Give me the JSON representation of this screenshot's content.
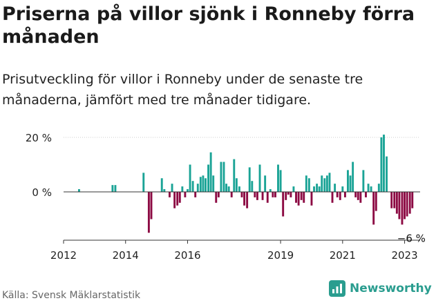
{
  "header": {
    "title": "Priserna på villor sjönk i Ronneby förra månaden",
    "subtitle": "Prisutveckling för villor i Ronneby under de senaste tre månaderna, jämfört med tre månader tidigare."
  },
  "footer": {
    "source": "Källa: Svensk Mäklarstatistik",
    "brand": "Newsworthy"
  },
  "colors": {
    "positive": "#1aa396",
    "negative": "#8c0a43",
    "axis": "#333333",
    "grid": "#cccccc"
  },
  "chart_data": {
    "type": "bar",
    "title": "",
    "xlabel": "",
    "ylabel": "",
    "ylim": [
      -17,
      23
    ],
    "y_ticks": [
      {
        "value": 0,
        "label": "0 %"
      },
      {
        "value": 20,
        "label": "20 %"
      }
    ],
    "x_ticks": [
      {
        "value": 2012,
        "label": "2012"
      },
      {
        "value": 2014,
        "label": "2014"
      },
      {
        "value": 2016,
        "label": "2016"
      },
      {
        "value": 2019,
        "label": "2019"
      },
      {
        "value": 2021,
        "label": "2021"
      },
      {
        "value": 2023,
        "label": "2023"
      }
    ],
    "xlim": [
      2012,
      2023.5
    ],
    "annotation": {
      "label": "−6 %"
    },
    "series": [
      {
        "values": [
          {
            "x": 2012.5,
            "y": 1
          },
          {
            "x": 2013.58,
            "y": 2.5
          },
          {
            "x": 2013.67,
            "y": 2.5
          },
          {
            "x": 2014.58,
            "y": 7
          },
          {
            "x": 2014.75,
            "y": -15
          },
          {
            "x": 2014.83,
            "y": -10
          },
          {
            "x": 2015.17,
            "y": 5
          },
          {
            "x": 2015.25,
            "y": 1
          },
          {
            "x": 2015.42,
            "y": -2
          },
          {
            "x": 2015.5,
            "y": 3
          },
          {
            "x": 2015.58,
            "y": -6
          },
          {
            "x": 2015.67,
            "y": -5
          },
          {
            "x": 2015.75,
            "y": -4
          },
          {
            "x": 2015.83,
            "y": 2
          },
          {
            "x": 2015.92,
            "y": -2
          },
          {
            "x": 2016.0,
            "y": 1
          },
          {
            "x": 2016.08,
            "y": 10
          },
          {
            "x": 2016.17,
            "y": 4
          },
          {
            "x": 2016.25,
            "y": -2
          },
          {
            "x": 2016.33,
            "y": 3
          },
          {
            "x": 2016.42,
            "y": 5.5
          },
          {
            "x": 2016.5,
            "y": 6
          },
          {
            "x": 2016.58,
            "y": 5
          },
          {
            "x": 2016.67,
            "y": 10
          },
          {
            "x": 2016.75,
            "y": 14.5
          },
          {
            "x": 2016.83,
            "y": 6
          },
          {
            "x": 2016.92,
            "y": -4
          },
          {
            "x": 2017.0,
            "y": -2
          },
          {
            "x": 2017.08,
            "y": 11
          },
          {
            "x": 2017.17,
            "y": 11
          },
          {
            "x": 2017.25,
            "y": 3
          },
          {
            "x": 2017.33,
            "y": 2
          },
          {
            "x": 2017.42,
            "y": -2
          },
          {
            "x": 2017.5,
            "y": 12
          },
          {
            "x": 2017.58,
            "y": 5
          },
          {
            "x": 2017.67,
            "y": 2
          },
          {
            "x": 2017.75,
            "y": -2
          },
          {
            "x": 2017.83,
            "y": -5
          },
          {
            "x": 2017.92,
            "y": -6
          },
          {
            "x": 2018.0,
            "y": 9
          },
          {
            "x": 2018.08,
            "y": 4
          },
          {
            "x": 2018.17,
            "y": -2
          },
          {
            "x": 2018.25,
            "y": -3
          },
          {
            "x": 2018.33,
            "y": 10
          },
          {
            "x": 2018.42,
            "y": -3
          },
          {
            "x": 2018.5,
            "y": 6
          },
          {
            "x": 2018.58,
            "y": -4
          },
          {
            "x": 2018.67,
            "y": 1
          },
          {
            "x": 2018.75,
            "y": -2
          },
          {
            "x": 2018.83,
            "y": -2
          },
          {
            "x": 2018.92,
            "y": 10
          },
          {
            "x": 2019.0,
            "y": 8
          },
          {
            "x": 2019.08,
            "y": -9
          },
          {
            "x": 2019.17,
            "y": -3
          },
          {
            "x": 2019.25,
            "y": -1
          },
          {
            "x": 2019.33,
            "y": -2
          },
          {
            "x": 2019.42,
            "y": 2
          },
          {
            "x": 2019.5,
            "y": -4
          },
          {
            "x": 2019.58,
            "y": -5
          },
          {
            "x": 2019.67,
            "y": -3
          },
          {
            "x": 2019.75,
            "y": -4
          },
          {
            "x": 2019.83,
            "y": 6
          },
          {
            "x": 2019.92,
            "y": 5
          },
          {
            "x": 2020.0,
            "y": -5
          },
          {
            "x": 2020.08,
            "y": 2
          },
          {
            "x": 2020.17,
            "y": 3
          },
          {
            "x": 2020.25,
            "y": 2
          },
          {
            "x": 2020.33,
            "y": 6
          },
          {
            "x": 2020.42,
            "y": 5
          },
          {
            "x": 2020.5,
            "y": 6
          },
          {
            "x": 2020.58,
            "y": 7
          },
          {
            "x": 2020.67,
            "y": -4
          },
          {
            "x": 2020.75,
            "y": 3
          },
          {
            "x": 2020.83,
            "y": -2
          },
          {
            "x": 2020.92,
            "y": -3
          },
          {
            "x": 2021.0,
            "y": 2
          },
          {
            "x": 2021.08,
            "y": -2
          },
          {
            "x": 2021.17,
            "y": 8
          },
          {
            "x": 2021.25,
            "y": 6
          },
          {
            "x": 2021.33,
            "y": 11
          },
          {
            "x": 2021.42,
            "y": -2
          },
          {
            "x": 2021.5,
            "y": -3
          },
          {
            "x": 2021.58,
            "y": -4
          },
          {
            "x": 2021.67,
            "y": 8
          },
          {
            "x": 2021.75,
            "y": -2
          },
          {
            "x": 2021.83,
            "y": 3
          },
          {
            "x": 2021.92,
            "y": 2
          },
          {
            "x": 2022.0,
            "y": -12
          },
          {
            "x": 2022.08,
            "y": -7
          },
          {
            "x": 2022.17,
            "y": 3
          },
          {
            "x": 2022.25,
            "y": 20
          },
          {
            "x": 2022.33,
            "y": 21
          },
          {
            "x": 2022.42,
            "y": 13
          },
          {
            "x": 2022.58,
            "y": -6
          },
          {
            "x": 2022.67,
            "y": -6
          },
          {
            "x": 2022.75,
            "y": -8
          },
          {
            "x": 2022.83,
            "y": -10
          },
          {
            "x": 2022.92,
            "y": -12
          },
          {
            "x": 2023.0,
            "y": -10
          },
          {
            "x": 2023.08,
            "y": -9
          },
          {
            "x": 2023.17,
            "y": -8
          },
          {
            "x": 2023.25,
            "y": -6
          }
        ]
      }
    ]
  }
}
